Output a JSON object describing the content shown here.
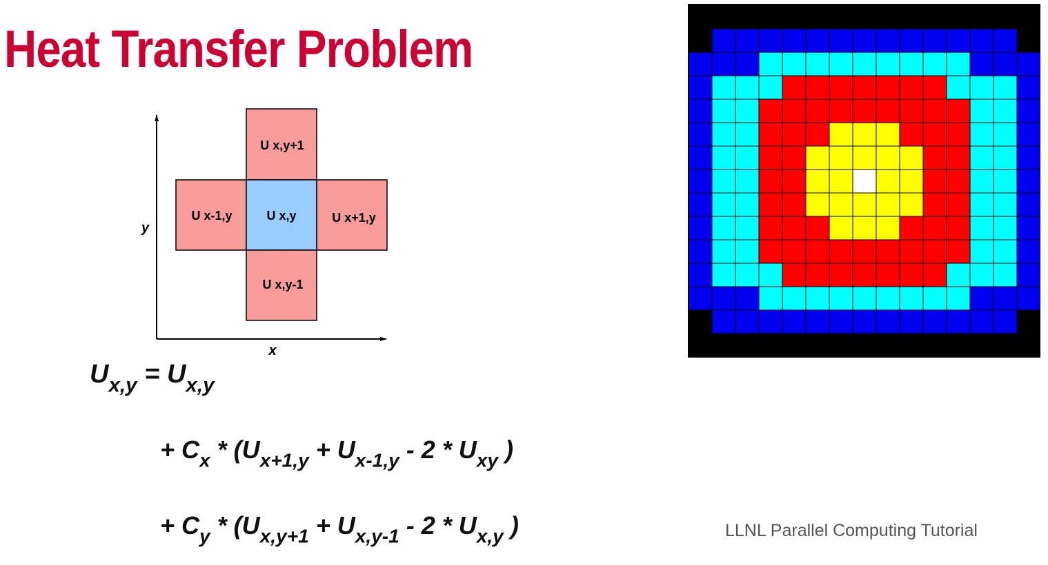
{
  "title": "Heat Transfer Problem",
  "credit": "LLNL Parallel Computing Tutorial",
  "stencil": {
    "axis_x_label": "x",
    "axis_y_label": "y",
    "cells": {
      "top": "U x,y+1",
      "left": "U x-1,y",
      "center": "U x,y",
      "right": "U x+1,y",
      "bottom": "U x,y-1"
    },
    "colors": {
      "neighbor": "#f79b9b",
      "center": "#99ccff",
      "stroke": "#000000"
    }
  },
  "equation": {
    "line1": {
      "lhs": "U",
      "lhs_sub": "x,y",
      "eq": " = ",
      "rhs": "U",
      "rhs_sub": "x,y"
    },
    "line2": {
      "prefix": "+ C",
      "c_sub": "x",
      "open": " * (U",
      "t1_sub": "x+1,y",
      "plus": " + U",
      "t2_sub": "x-1,y",
      "minus": " - 2 * U",
      "t3_sub": "xy",
      "close": " )"
    },
    "line3": {
      "prefix": "+ C",
      "c_sub": "y",
      "open": " * (U",
      "t1_sub": "x,y+1",
      "plus": " + U",
      "t2_sub": "x,y-1",
      "minus": " - 2 * U",
      "t3_sub": "x,y",
      "close": " )"
    }
  },
  "heatmap": {
    "colors": {
      "0": "#000000",
      "1": "#0000ee",
      "2": "#00ffff",
      "3": "#ff0000",
      "4": "#ffff00",
      "5": "#ffffff"
    },
    "gridline_color": "#000000",
    "grid": [
      "000000000000000",
      "011111111111110",
      "111222222222111",
      "122233333332221",
      "122333333333221",
      "122333444333221",
      "122334444433221",
      "122334454433221",
      "122334444433221",
      "122333444333221",
      "122333333333221",
      "122233333332221",
      "111222222222111",
      "011111111111110",
      "000000000000000"
    ]
  }
}
